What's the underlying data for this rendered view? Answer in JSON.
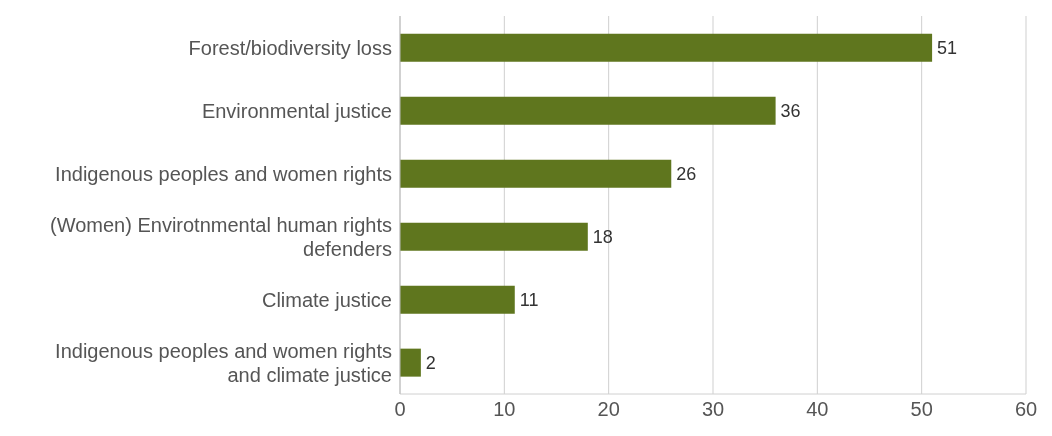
{
  "chart_data": {
    "type": "bar",
    "orientation": "horizontal",
    "categories": [
      "Forest/biodiversity loss",
      "Environmental justice",
      "Indigenous peoples and women rights",
      "(Women) Envirotnmental human rights defenders",
      "Climate justice",
      "Indigenous peoples and women rights and climate justice"
    ],
    "values": [
      51,
      36,
      26,
      18,
      11,
      2
    ],
    "color": "#5f761e",
    "xlim": [
      0,
      60
    ],
    "xticks": [
      0,
      10,
      20,
      30,
      40,
      50,
      60
    ],
    "grid": "x",
    "data_labels": true
  }
}
